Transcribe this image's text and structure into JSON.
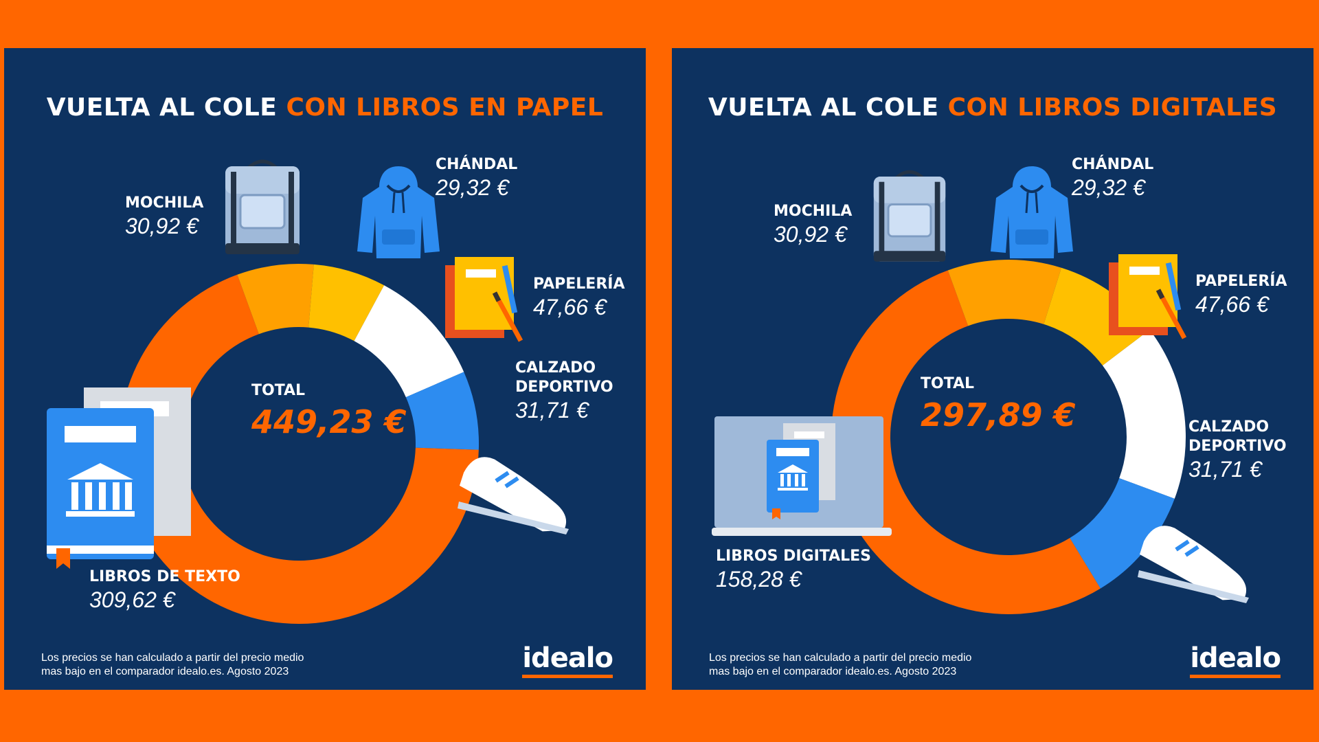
{
  "colors": {
    "background": "#ff6600",
    "panel": "#0d3260",
    "accent": "#ff6600"
  },
  "chart_data": [
    {
      "type": "pie",
      "title": "VUELTA AL COLE",
      "subtitle": "CON LIBROS EN PAPEL",
      "total_label": "TOTAL",
      "total_value": "449,23 €",
      "total": 449.23,
      "slices": [
        {
          "name": "LIBROS DE TEXTO",
          "value": 309.62,
          "label": "309,62 €",
          "color": "#ff6600",
          "icon": "textbook-icon"
        },
        {
          "name": "MOCHILA",
          "value": 30.92,
          "label": "30,92 €",
          "color": "#ffa000",
          "icon": "backpack-icon"
        },
        {
          "name": "CHÁNDAL",
          "value": 29.32,
          "label": "29,32 €",
          "color": "#ffc000",
          "icon": "hoodie-icon"
        },
        {
          "name": "PAPELERÍA",
          "value": 47.66,
          "label": "47,66 €",
          "color": "#ffffff",
          "icon": "notebook-pencil-icon"
        },
        {
          "name": "CALZADO DEPORTIVO",
          "value": 31.71,
          "label": "31,71 €",
          "color": "#2d8cf0",
          "icon": "sneaker-icon"
        }
      ],
      "footnote": "Los precios se han calculado a partir del precio medio\nmas bajo en el comparador idealo.es. Agosto 2023",
      "logo": "idealo"
    },
    {
      "type": "pie",
      "title": "VUELTA AL COLE",
      "subtitle": "CON LIBROS DIGITALES",
      "total_label": "TOTAL",
      "total_value": "297,89 €",
      "total": 297.89,
      "slices": [
        {
          "name": "LIBROS DIGITALES",
          "value": 158.28,
          "label": "158,28 €",
          "color": "#ff6600",
          "icon": "laptop-ebook-icon"
        },
        {
          "name": "MOCHILA",
          "value": 30.92,
          "label": "30,92 €",
          "color": "#ffa000",
          "icon": "backpack-icon"
        },
        {
          "name": "CHÁNDAL",
          "value": 29.32,
          "label": "29,32 €",
          "color": "#ffc000",
          "icon": "hoodie-icon"
        },
        {
          "name": "PAPELERÍA",
          "value": 47.66,
          "label": "47,66 €",
          "color": "#ffffff",
          "icon": "notebook-pencil-icon"
        },
        {
          "name": "CALZADO DEPORTIVO",
          "value": 31.71,
          "label": "31,71 €",
          "color": "#2d8cf0",
          "icon": "sneaker-icon"
        }
      ],
      "footnote": "Los precios se han calculado a partir del precio medio\nmas bajo en el comparador idealo.es. Agosto 2023",
      "logo": "idealo"
    }
  ]
}
